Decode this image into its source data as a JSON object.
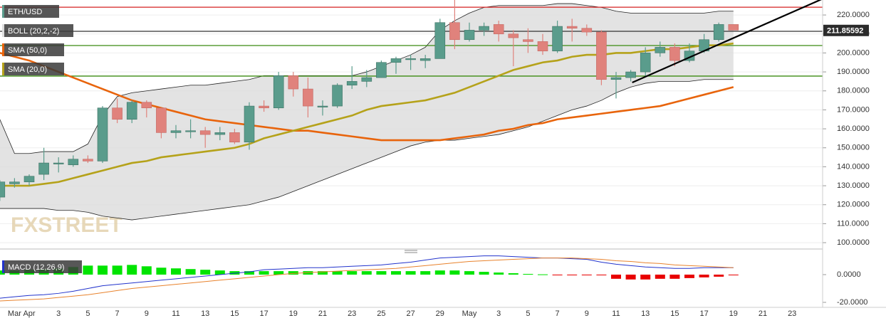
{
  "chart_data": [
    {
      "type": "candlestick",
      "symbol": "ETH/USD",
      "watermark": "FXSTREET",
      "categories": [
        null,
        "Mar",
        "Apr",
        null,
        "3",
        null,
        "5",
        null,
        "7",
        null,
        "9",
        null,
        "11",
        null,
        "13",
        null,
        "15",
        null,
        "17",
        null,
        "19",
        null,
        "21",
        null,
        "23",
        null,
        "25",
        null,
        "27",
        null,
        "29",
        null,
        "May",
        null,
        "3",
        null,
        "5",
        null,
        "7",
        null,
        "9",
        null,
        "11",
        null,
        "13",
        null,
        "15",
        null,
        "17",
        null,
        "19",
        null,
        "21",
        null,
        "23"
      ],
      "open": [
        124,
        131,
        132,
        136,
        142,
        141,
        144,
        143,
        171,
        165,
        174,
        171,
        158,
        159,
        159,
        157,
        158,
        153,
        172,
        171,
        188,
        181,
        172,
        172,
        183,
        185,
        187,
        195,
        197,
        196,
        197,
        216,
        207,
        212,
        215,
        210,
        207,
        206,
        201,
        214,
        213,
        211,
        186,
        187,
        190,
        200,
        203,
        196,
        201,
        207,
        215,
        null,
        null,
        null,
        null
      ],
      "high": [
        133,
        134,
        136,
        150,
        145,
        146,
        146,
        172,
        176,
        175,
        175,
        171,
        162,
        165,
        161,
        161,
        160,
        174,
        175,
        190,
        190,
        187,
        175,
        184,
        193,
        191,
        196,
        198,
        199,
        199,
        218,
        228,
        216,
        216,
        217,
        212,
        213,
        210,
        217,
        218,
        215,
        212,
        190,
        191,
        203,
        206,
        205,
        205,
        210,
        216,
        215,
        null,
        null,
        null,
        null
      ],
      "low": [
        122,
        129,
        130,
        133,
        137,
        140,
        142,
        142,
        163,
        163,
        166,
        155,
        155,
        155,
        150,
        154,
        152,
        149,
        169,
        170,
        177,
        166,
        167,
        171,
        181,
        182,
        187,
        189,
        191,
        192,
        197,
        202,
        206,
        209,
        206,
        193,
        200,
        199,
        200,
        206,
        209,
        183,
        176,
        185,
        188,
        198,
        193,
        195,
        200,
        206,
        212,
        null,
        null,
        null,
        null
      ],
      "close": [
        132,
        132,
        135,
        142,
        142,
        144,
        143,
        171,
        165,
        174,
        171,
        158,
        159,
        159,
        157,
        158,
        153,
        172,
        171,
        188,
        181,
        172,
        172,
        183,
        185,
        187,
        195,
        197,
        197,
        197,
        216,
        207,
        212,
        214,
        210,
        208,
        206,
        201,
        214,
        213,
        211,
        186,
        187,
        190,
        200,
        203,
        196,
        201,
        207,
        215,
        212,
        null,
        null,
        null,
        null
      ],
      "up_color": "#5a9c8c",
      "down_color": "#e0827c",
      "last_price": 211.85592,
      "bollinger": {
        "name": "BOLL (20,2,-2)",
        "color": "#222222",
        "upper": [
          165,
          147,
          147,
          148,
          148,
          148,
          152,
          167,
          177,
          179,
          180,
          181,
          182,
          183,
          183,
          184,
          185,
          186,
          188,
          188,
          188,
          188,
          188,
          188,
          188,
          190,
          193,
          196,
          199,
          203,
          212,
          217,
          221,
          224,
          225,
          225,
          225,
          225,
          226,
          226,
          225,
          224,
          222,
          221,
          221,
          221,
          221,
          221,
          221,
          222,
          222,
          null,
          null,
          null,
          null
        ],
        "lower": [
          118,
          118,
          118,
          118,
          117,
          117,
          116,
          114,
          113,
          112,
          113,
          114,
          115,
          116,
          117,
          118,
          119,
          120,
          122,
          124,
          127,
          130,
          133,
          136,
          139,
          142,
          145,
          148,
          151,
          153,
          154,
          154,
          155,
          156,
          157,
          159,
          161,
          164,
          167,
          170,
          172,
          175,
          179,
          182,
          184,
          185,
          185,
          185,
          186,
          186,
          186,
          null,
          null,
          null,
          null
        ]
      },
      "series": [
        {
          "name": "SMA (50,0)",
          "color": "#e8640c",
          "values": [
            200,
            198,
            196,
            193,
            190,
            187,
            184,
            181,
            178,
            175,
            173,
            171,
            169,
            167,
            165,
            164,
            163,
            162,
            161,
            160,
            159,
            159,
            158,
            157,
            156,
            155,
            154,
            154,
            154,
            154,
            154,
            155,
            156,
            157,
            159,
            160,
            162,
            163,
            165,
            166,
            167,
            168,
            169,
            170,
            171,
            172,
            174,
            176,
            178,
            180,
            182,
            null,
            null,
            null,
            null
          ]
        },
        {
          "name": "SMA (20,0)",
          "color": "#b5a21a",
          "values": [
            130,
            130,
            130,
            131,
            132,
            134,
            136,
            138,
            140,
            142,
            143,
            145,
            146,
            147,
            148,
            149,
            150,
            152,
            155,
            157,
            159,
            161,
            163,
            165,
            167,
            170,
            172,
            173,
            174,
            175,
            177,
            179,
            182,
            185,
            188,
            191,
            193,
            195,
            196,
            198,
            199,
            199,
            200,
            200,
            201,
            202,
            202,
            203,
            204,
            204,
            205,
            null,
            null,
            null,
            null
          ]
        }
      ],
      "levels": [
        {
          "value": 224.1,
          "color": "#d62020"
        },
        {
          "value": 211.4,
          "color": "#333333"
        },
        {
          "value": 203.9,
          "color": "#3a8a10"
        },
        {
          "value": 187.8,
          "color": "#3a8a10"
        }
      ],
      "trendline": {
        "x": [
          43.1,
          56.1
        ],
        "values": [
          184.4,
          228.6
        ],
        "color": "#000000"
      },
      "ylim": [
        97.4,
        227.9
      ],
      "yticks": [
        {
          "value": 100,
          "label": "100.0000"
        },
        {
          "value": 110,
          "label": "110.0000"
        },
        {
          "value": 120,
          "label": "120.0000"
        },
        {
          "value": 130,
          "label": "130.0000"
        },
        {
          "value": 140,
          "label": "140.0000"
        },
        {
          "value": 150,
          "label": "150.0000"
        },
        {
          "value": 160,
          "label": "160.0000"
        },
        {
          "value": 170,
          "label": "170.0000"
        },
        {
          "value": 180,
          "label": "180.0000"
        },
        {
          "value": 190,
          "label": "190.0000"
        },
        {
          "value": 200,
          "label": "200.0000"
        },
        {
          "value": 210,
          "label": "210.0000"
        },
        {
          "value": 220,
          "label": "220.0000"
        }
      ],
      "grid": true
    },
    {
      "type": "macd",
      "name": "MACD (12,26,9)",
      "macd": {
        "color": "#2233cc",
        "values": [
          -17,
          -16,
          -15,
          -14.5,
          -13.5,
          -12,
          -10,
          -8,
          -7,
          -6,
          -5,
          -4,
          -3,
          -2,
          -1,
          0,
          1,
          2,
          3.5,
          4,
          4.5,
          5,
          5,
          5.5,
          6,
          6.5,
          7,
          8,
          9,
          10.5,
          12,
          12.5,
          13,
          13.5,
          13.5,
          13,
          12.5,
          12,
          12,
          11.5,
          11,
          9,
          7.5,
          6.5,
          5.5,
          5,
          4.5,
          4.5,
          5,
          5,
          5,
          null,
          null,
          null,
          null
        ]
      },
      "signal": {
        "color": "#e8822c",
        "values": [
          -19,
          -18.5,
          -18,
          -17.5,
          -16.5,
          -15.5,
          -14.5,
          -13,
          -11.5,
          -10,
          -9,
          -8,
          -7,
          -6,
          -5,
          -4,
          -3,
          -2,
          -1,
          0,
          0.8,
          1.5,
          2,
          2.5,
          3,
          3.5,
          4,
          4.5,
          5.5,
          6.5,
          7.5,
          8.5,
          9.5,
          10,
          10.5,
          11,
          11.5,
          12,
          12,
          12,
          11.5,
          11,
          10,
          9.5,
          8.5,
          8,
          7,
          6.5,
          6,
          5.5,
          5,
          null,
          null,
          null,
          null
        ]
      },
      "histogram": {
        "up_color": "#00e400",
        "down_color": "#e80000",
        "values": [
          3,
          3,
          3.5,
          4,
          4.5,
          5.5,
          6.5,
          6.5,
          6.5,
          7,
          6,
          5,
          4.5,
          4,
          3.5,
          3,
          2.5,
          2.5,
          2.5,
          2.5,
          2.5,
          2.5,
          2.5,
          2.5,
          2.5,
          2.5,
          2.5,
          2.5,
          2.5,
          2.5,
          3,
          3,
          2.5,
          2,
          1.5,
          1,
          0.5,
          0.2,
          -0.3,
          -0.3,
          -0.3,
          -0.3,
          -3,
          -3.5,
          -3.5,
          -3,
          -3,
          -2.5,
          -2,
          -1.5,
          -0.5,
          null,
          null,
          null,
          null
        ]
      },
      "ylim": [
        -23.6,
        15.9
      ],
      "yticks": [
        {
          "value": 0,
          "label": "0.0000"
        },
        {
          "value": -20,
          "label": "-20.0000"
        }
      ]
    }
  ]
}
